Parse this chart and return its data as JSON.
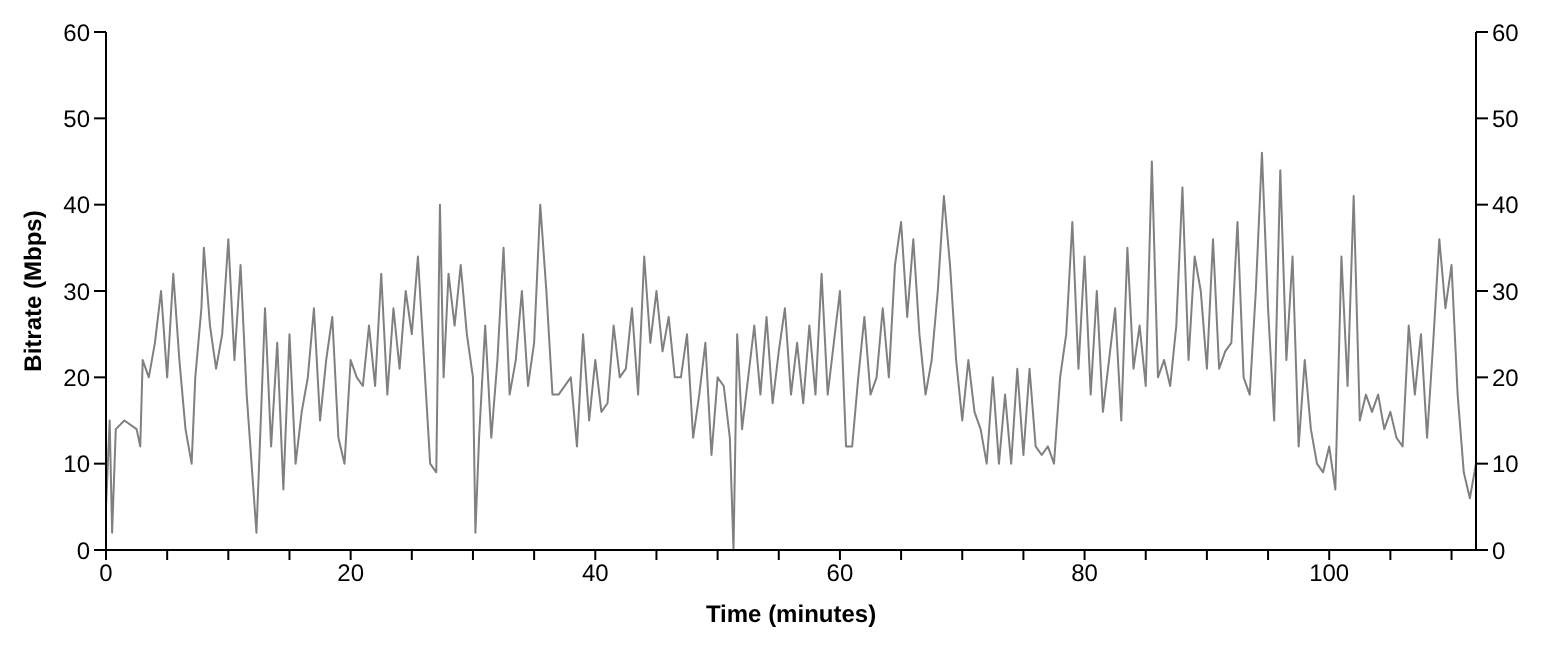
{
  "chart_data": {
    "type": "line",
    "xlabel": "Time (minutes)",
    "ylabel": "Bitrate (Mbps)",
    "series": [
      {
        "color": "#808080",
        "x": [
          0,
          0.3,
          0.5,
          0.8,
          1.5,
          2.5,
          2.8,
          3,
          3.5,
          4,
          4.5,
          5,
          5.5,
          6,
          6.5,
          7,
          7.3,
          7.8,
          8,
          8.5,
          9,
          9.5,
          10,
          10.5,
          11,
          11.5,
          12,
          12.3,
          12.6,
          13,
          13.5,
          14,
          14.5,
          15,
          15.5,
          16,
          16.5,
          17,
          17.5,
          18,
          18.5,
          19,
          19.5,
          20,
          20.5,
          21,
          21.5,
          22,
          22.5,
          23,
          23.5,
          24,
          24.5,
          25,
          25.5,
          26,
          26.5,
          27,
          27.3,
          27.6,
          28,
          28.5,
          29,
          29.5,
          30,
          30.2,
          30.5,
          31,
          31.5,
          32,
          32.5,
          33,
          33.5,
          34,
          34.5,
          35,
          35.5,
          36,
          36.5,
          37,
          38,
          38.5,
          39,
          39.5,
          40,
          40.5,
          41,
          41.5,
          42,
          42.5,
          43,
          43.5,
          44,
          44.5,
          45,
          45.5,
          46,
          46.5,
          47,
          47.5,
          48,
          48.5,
          49,
          49.5,
          50,
          50.5,
          51,
          51.3,
          51.6,
          52,
          52.5,
          53,
          53.5,
          54,
          54.5,
          55,
          55.5,
          56,
          56.5,
          57,
          57.5,
          58,
          58.5,
          59,
          59.5,
          60,
          60.5,
          61,
          61.5,
          62,
          62.5,
          63,
          63.5,
          64,
          64.5,
          65,
          65.5,
          66,
          66.5,
          67,
          67.5,
          68,
          68.5,
          69,
          69.5,
          70,
          70.5,
          71,
          71.5,
          72,
          72.5,
          73,
          73.5,
          74,
          74.5,
          75,
          75.5,
          76,
          76.5,
          77,
          77.5,
          78,
          78.5,
          79,
          79.5,
          80,
          80.5,
          81,
          81.5,
          82,
          82.5,
          83,
          83.5,
          84,
          84.5,
          85,
          85.5,
          86,
          86.5,
          87,
          87.5,
          88,
          88.5,
          89,
          89.5,
          90,
          90.5,
          91,
          91.5,
          92,
          92.5,
          93,
          93.5,
          94,
          94.5,
          95,
          95.5,
          96,
          96.5,
          97,
          97.5,
          98,
          98.5,
          99,
          99.5,
          100,
          100.5,
          101,
          101.5,
          102,
          102.5,
          103,
          103.5,
          104,
          104.5,
          105,
          105.5,
          106,
          106.5,
          107,
          107.5,
          108,
          108.5,
          109,
          109.5,
          110,
          110.5,
          111,
          111.5,
          112
        ],
        "values": [
          5,
          15,
          2,
          14,
          15,
          14,
          12,
          22,
          20,
          24,
          30,
          20,
          32,
          22,
          14,
          10,
          20,
          28,
          35,
          26,
          21,
          25,
          36,
          22,
          33,
          18,
          8,
          2,
          13,
          28,
          12,
          24,
          7,
          25,
          10,
          16,
          20,
          28,
          15,
          22,
          27,
          13,
          10,
          22,
          20,
          19,
          26,
          19,
          32,
          18,
          28,
          21,
          30,
          25,
          34,
          22,
          10,
          9,
          40,
          20,
          32,
          26,
          33,
          25,
          20,
          2,
          13,
          26,
          13,
          22,
          35,
          18,
          22,
          30,
          19,
          24,
          40,
          30,
          18,
          18,
          20,
          12,
          25,
          15,
          22,
          16,
          17,
          26,
          20,
          21,
          28,
          18,
          34,
          24,
          30,
          23,
          27,
          20,
          20,
          25,
          13,
          18,
          24,
          11,
          20,
          19,
          13,
          0,
          25,
          14,
          20,
          26,
          18,
          27,
          17,
          23,
          28,
          18,
          24,
          17,
          26,
          18,
          32,
          18,
          24,
          30,
          12,
          12,
          20,
          27,
          18,
          20,
          28,
          20,
          33,
          38,
          27,
          36,
          25,
          18,
          22,
          30,
          41,
          33,
          22,
          15,
          22,
          16,
          14,
          10,
          20,
          10,
          18,
          10,
          21,
          11,
          21,
          12,
          11,
          12,
          10,
          20,
          25,
          38,
          21,
          34,
          18,
          30,
          16,
          22,
          28,
          15,
          35,
          21,
          26,
          19,
          45,
          20,
          22,
          19,
          26,
          42,
          22,
          34,
          30,
          21,
          36,
          21,
          23,
          24,
          38,
          20,
          18,
          30,
          46,
          28,
          15,
          44,
          22,
          34,
          12,
          22,
          14,
          10,
          9,
          12,
          7,
          34,
          19,
          41,
          15,
          18,
          16,
          18,
          14,
          16,
          13,
          12,
          26,
          18,
          25,
          13,
          24,
          36,
          28,
          33,
          18,
          9,
          6,
          10
        ]
      }
    ],
    "xlim": [
      0,
      112
    ],
    "xticks": [
      0,
      {
        "value": 5,
        "label": null
      },
      {
        "value": 10,
        "label": null
      },
      {
        "value": 15,
        "label": null
      },
      20,
      {
        "value": 25,
        "label": null
      },
      {
        "value": 30,
        "label": null
      },
      {
        "value": 35,
        "label": null
      },
      40,
      {
        "value": 45,
        "label": null
      },
      {
        "value": 50,
        "label": null
      },
      {
        "value": 55,
        "label": null
      },
      60,
      {
        "value": 65,
        "label": null
      },
      {
        "value": 70,
        "label": null
      },
      {
        "value": 75,
        "label": null
      },
      80,
      {
        "value": 85,
        "label": null
      },
      {
        "value": 90,
        "label": null
      },
      {
        "value": 95,
        "label": null
      },
      100,
      {
        "value": 105,
        "label": null
      },
      {
        "value": 110,
        "label": null
      }
    ],
    "ylim": [
      0,
      60
    ],
    "yticks": [
      0,
      10,
      20,
      30,
      40,
      50,
      60
    ],
    "y2lim": [
      0,
      60
    ],
    "y2ticks": [
      0,
      10,
      20,
      30,
      40,
      50,
      60
    ],
    "grid": false,
    "marker": "none",
    "line_style": "solid"
  }
}
